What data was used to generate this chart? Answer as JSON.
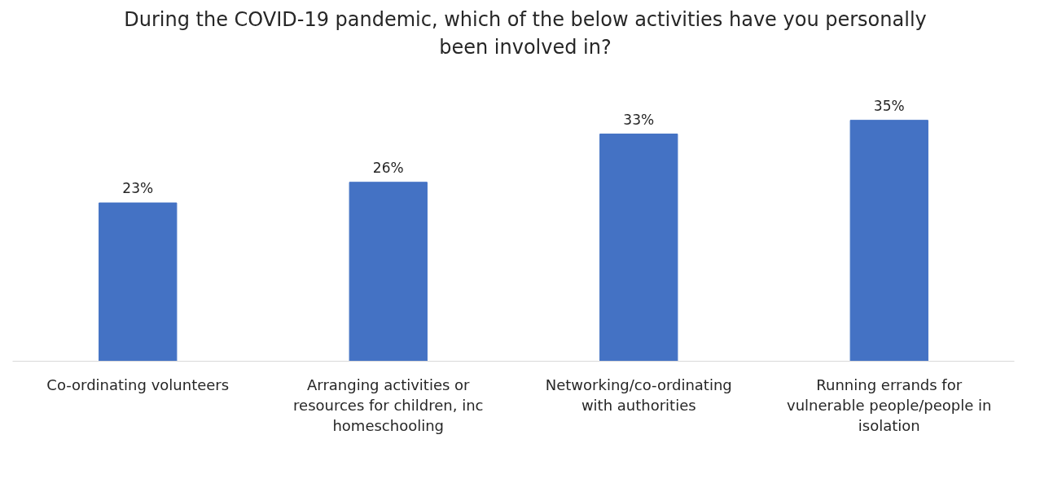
{
  "chart_data": {
    "type": "bar",
    "title": "During the COVID-19 pandemic, which of the below activities have you personally been involved in?",
    "categories": [
      "Co-ordinating volunteers",
      "Arranging activities or resources for children, inc homeschooling",
      "Networking/co-ordinating with authorities",
      "Running errands for vulnerable people/people in isolation"
    ],
    "values": [
      23,
      26,
      33,
      35
    ],
    "value_labels": [
      "23%",
      "26%",
      "33%",
      "35%"
    ],
    "color": "#4472c4"
  }
}
